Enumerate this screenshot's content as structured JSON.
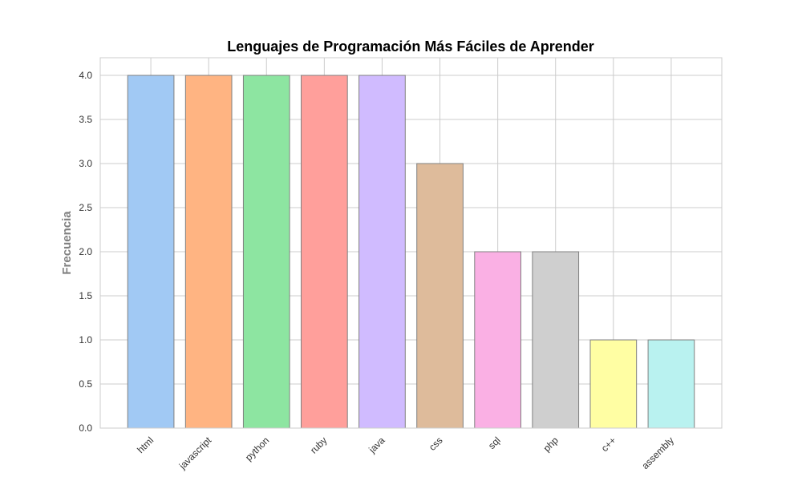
{
  "chart_data": {
    "type": "bar",
    "title": "Lenguajes de Programación Más Fáciles de Aprender",
    "xlabel": "",
    "ylabel": "Frecuencia",
    "categories": [
      "html",
      "javascript",
      "python",
      "ruby",
      "java",
      "css",
      "sql",
      "php",
      "c++",
      "assembly"
    ],
    "values": [
      4,
      4,
      4,
      4,
      4,
      3,
      2,
      2,
      1,
      1
    ],
    "colors": [
      "#a1c9f4",
      "#ffb482",
      "#8de5a1",
      "#ff9f9b",
      "#d0bbff",
      "#debb9b",
      "#fab0e4",
      "#cfcfcf",
      "#fffea3",
      "#b9f2f0"
    ],
    "edge_color": "#808080",
    "ylim": [
      0,
      4.2
    ],
    "yticks": [
      "0.0",
      "0.5",
      "1.0",
      "1.5",
      "2.0",
      "2.5",
      "3.0",
      "3.5",
      "4.0"
    ],
    "grid": true,
    "legend": "none"
  }
}
